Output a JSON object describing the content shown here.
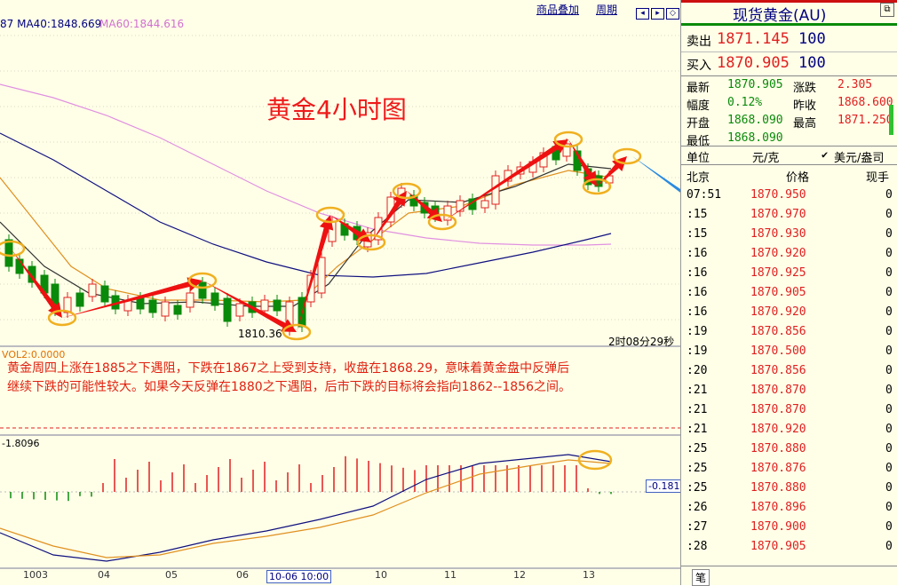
{
  "header": {
    "ma40": "87 MA40:1848.669",
    "ma60": "MA60:1844.616",
    "link_overlay": "商品叠加",
    "link_period": "周期"
  },
  "chart_title": "黄金4小时图",
  "price_low_label": "1810.36",
  "countdown": "2时08分29秒",
  "vol_label": "VOL2:0.0000",
  "annotation": [
    "黄金周四上涨在1885之下遇阻，下跌在1867之上受到支持，收盘在1868.29，意味着黄金盘中反弹后",
    "继续下跌的可能性较大。如果今天反弹在1880之下遇阻，后市下跌的目标将会指向1862--1856之间。"
  ],
  "macd_top_label": "-1.8096",
  "macd_value_label": "-0.181",
  "x_ticks": [
    "1003",
    "04",
    "05",
    "06",
    "10",
    "11",
    "12",
    "13"
  ],
  "x_cursor": "10-06 10:00",
  "colors": {
    "up": "#e02020",
    "down": "#0a8a0a",
    "arrow": "#ee1111",
    "circle": "#f0b020",
    "blue_arrow": "#2a8ae0"
  },
  "sidebar": {
    "title": "现货黄金(AU)",
    "sell_label": "卖出",
    "sell_price": "1871.145",
    "sell_qty": "100",
    "buy_label": "买入",
    "buy_price": "1870.905",
    "buy_qty": "100",
    "stats": [
      {
        "l1": "最新",
        "v1": "1870.905",
        "l2": "涨跌",
        "v2": "2.305"
      },
      {
        "l1": "幅度",
        "v1": "0.12%",
        "l2": "昨收",
        "v2": "1868.600"
      },
      {
        "l1": "开盘",
        "v1": "1868.090",
        "l2": "最高",
        "v2": "1871.250"
      },
      {
        "l1": "最低",
        "v1": "1868.090",
        "l2": "",
        "v2": ""
      }
    ],
    "unit_label": "单位",
    "unit_value": "元/克",
    "unit_alt": "美元/盎司",
    "col_time": "北京",
    "col_price": "价格",
    "col_qty": "现手",
    "ticks": [
      {
        "t": "07:51",
        "p": "1870.950",
        "q": "0"
      },
      {
        "t": ":15",
        "p": "1870.970",
        "q": "0"
      },
      {
        "t": ":15",
        "p": "1870.930",
        "q": "0"
      },
      {
        "t": ":16",
        "p": "1870.920",
        "q": "0"
      },
      {
        "t": ":16",
        "p": "1870.925",
        "q": "0"
      },
      {
        "t": ":16",
        "p": "1870.905",
        "q": "0"
      },
      {
        "t": ":16",
        "p": "1870.920",
        "q": "0"
      },
      {
        "t": ":19",
        "p": "1870.856",
        "q": "0"
      },
      {
        "t": ":19",
        "p": "1870.500",
        "q": "0"
      },
      {
        "t": ":20",
        "p": "1870.856",
        "q": "0"
      },
      {
        "t": ":21",
        "p": "1870.870",
        "q": "0"
      },
      {
        "t": ":21",
        "p": "1870.870",
        "q": "0"
      },
      {
        "t": ":21",
        "p": "1870.920",
        "q": "0"
      },
      {
        "t": ":25",
        "p": "1870.880",
        "q": "0"
      },
      {
        "t": ":25",
        "p": "1870.876",
        "q": "0"
      },
      {
        "t": ":25",
        "p": "1870.880",
        "q": "0"
      },
      {
        "t": ":26",
        "p": "1870.896",
        "q": "0"
      },
      {
        "t": ":27",
        "p": "1870.900",
        "q": "0"
      },
      {
        "t": ":28",
        "p": "1870.905",
        "q": "0"
      }
    ],
    "bottom_tab": "笔"
  }
}
